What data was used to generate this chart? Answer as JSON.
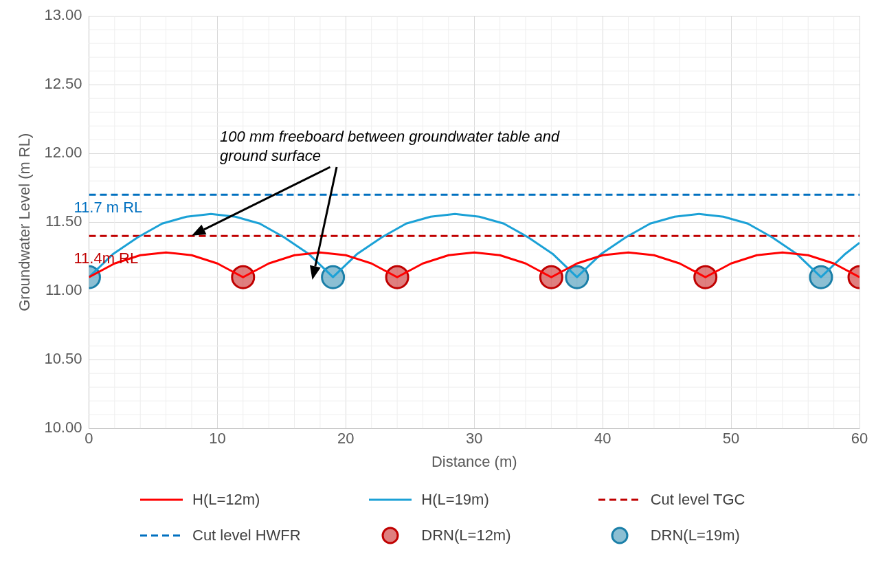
{
  "chart_data": {
    "type": "line",
    "xlabel": "Distance (m)",
    "ylabel": "Groundwater Level (m RL)",
    "xlim": [
      0,
      60
    ],
    "xticks": [
      0,
      10,
      20,
      30,
      40,
      50,
      60
    ],
    "ylim": [
      10,
      13
    ],
    "yticks": [
      {
        "value": 10,
        "label": "10.00"
      },
      {
        "value": 10.5,
        "label": "10.50"
      },
      {
        "value": 11,
        "label": "11.00"
      },
      {
        "value": 11.5,
        "label": "11.50"
      },
      {
        "value": 12,
        "label": "12.00"
      },
      {
        "value": 12.5,
        "label": "12.50"
      },
      {
        "value": 13,
        "label": "13.00"
      }
    ],
    "grid": true,
    "legend": "bottom",
    "line_style": "solid",
    "marker": "none",
    "series": [
      {
        "name": "H(L=12m)",
        "color": "#ff0000",
        "x": [
          0,
          2,
          4,
          6,
          8,
          10,
          12,
          14,
          16,
          18,
          20,
          22,
          24,
          26,
          28,
          30,
          32,
          34,
          36,
          38,
          40,
          42,
          44,
          46,
          48,
          50,
          52,
          54,
          56,
          58,
          60
        ],
        "values": [
          11.1,
          11.2,
          11.26,
          11.28,
          11.26,
          11.2,
          11.1,
          11.2,
          11.26,
          11.28,
          11.26,
          11.2,
          11.1,
          11.2,
          11.26,
          11.28,
          11.26,
          11.2,
          11.1,
          11.2,
          11.26,
          11.28,
          11.26,
          11.2,
          11.1,
          11.2,
          11.26,
          11.28,
          11.26,
          11.2,
          11.1
        ]
      },
      {
        "name": "H(L=19m)",
        "color": "#1ba1d6",
        "x": [
          0,
          1.9,
          3.8,
          5.7,
          7.6,
          9.5,
          11.4,
          13.3,
          15.2,
          17.1,
          19,
          20.9,
          22.8,
          24.7,
          26.6,
          28.5,
          30.4,
          32.3,
          34.2,
          36.1,
          38,
          39.9,
          41.8,
          43.7,
          45.6,
          47.5,
          49.4,
          51.3,
          53.2,
          55.1,
          57,
          58.9,
          60
        ],
        "values": [
          11.1,
          11.27,
          11.39,
          11.49,
          11.54,
          11.56,
          11.54,
          11.49,
          11.39,
          11.27,
          11.1,
          11.27,
          11.39,
          11.49,
          11.54,
          11.56,
          11.54,
          11.49,
          11.39,
          11.27,
          11.1,
          11.27,
          11.39,
          11.49,
          11.54,
          11.56,
          11.54,
          11.49,
          11.39,
          11.27,
          11.1,
          11.27,
          11.35
        ]
      },
      {
        "name": "DRN(L=12m)",
        "type": "scatter",
        "marker": "circle",
        "color": "#c00000",
        "x": [
          12,
          24,
          36,
          48,
          60
        ],
        "values": [
          11.1,
          11.1,
          11.1,
          11.1,
          11.1
        ]
      },
      {
        "name": "DRN(L=19m)",
        "type": "scatter",
        "marker": "circle",
        "color": "#1a7fa8",
        "x": [
          0,
          19,
          38,
          57
        ],
        "values": [
          11.1,
          11.1,
          11.1,
          11.1
        ]
      }
    ],
    "ref_lines": [
      {
        "axis": "y",
        "value": 11.4,
        "label": "Cut level TGC",
        "color": "#c00000",
        "line_style": "dashed"
      },
      {
        "axis": "y",
        "value": 11.7,
        "label": "Cut level HWFR",
        "color": "#0070c0",
        "line_style": "dashed"
      }
    ],
    "annotations": [
      "11.4m RL",
      "11.7 m RL",
      "100 mm freeboard between groundwater table and ground surface"
    ]
  }
}
